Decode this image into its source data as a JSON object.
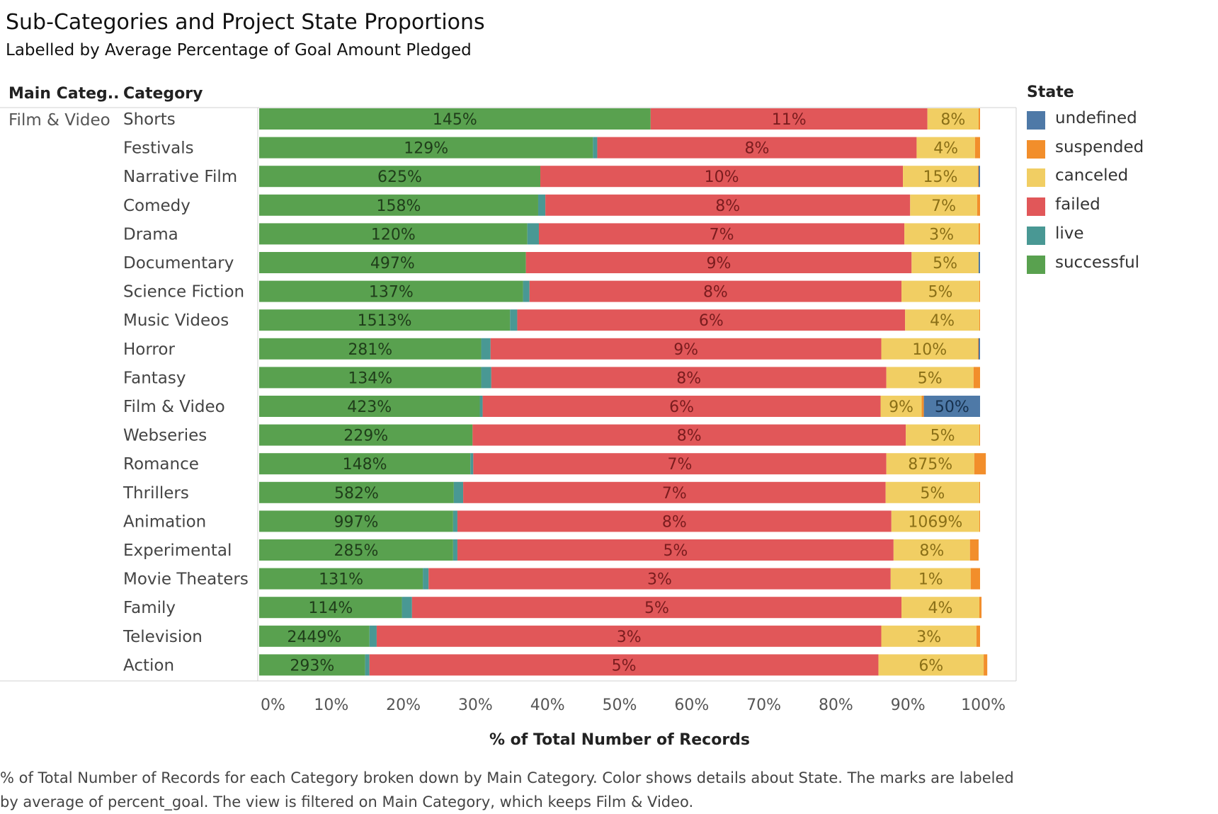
{
  "title": "Sub-Categories and Project State Proportions",
  "subtitle": "Labelled by Average Percentage of Goal Amount Pledged",
  "headers": {
    "main_category": "Main Categ..",
    "category": "Category"
  },
  "main_category_value": "Film & Video",
  "legend": {
    "title": "State",
    "items": [
      {
        "label": "undefined",
        "color": "#4e79a7"
      },
      {
        "label": "suspended",
        "color": "#f28e2b"
      },
      {
        "label": "canceled",
        "color": "#f1ce63"
      },
      {
        "label": "failed",
        "color": "#e15759"
      },
      {
        "label": "live",
        "color": "#499894"
      },
      {
        "label": "successful",
        "color": "#59a14f"
      }
    ]
  },
  "caption": "% of Total Number of Records for each Category broken down by Main Category.  Color shows details about State.  The marks are labeled by average of percent_goal. The view is filtered on Main Category, which keeps Film & Video.",
  "chart_data": {
    "type": "bar",
    "orientation": "horizontal",
    "stacked": true,
    "xlabel": "% of Total Number of Records",
    "xlim": [
      0,
      100
    ],
    "x_ticks": [
      "0%",
      "10%",
      "20%",
      "30%",
      "40%",
      "50%",
      "60%",
      "70%",
      "80%",
      "90%",
      "100%"
    ],
    "categories": [
      "Shorts",
      "Festivals",
      "Narrative Film",
      "Comedy",
      "Drama",
      "Documentary",
      "Science Fiction",
      "Music Videos",
      "Horror",
      "Fantasy",
      "Film & Video",
      "Webseries",
      "Romance",
      "Thrillers",
      "Animation",
      "Experimental",
      "Movie Theaters",
      "Family",
      "Television",
      "Action"
    ],
    "series": [
      {
        "name": "successful",
        "color": "#59a14f",
        "values": [
          54.3,
          46.3,
          39.0,
          38.7,
          37.2,
          37.0,
          36.6,
          34.8,
          30.8,
          30.8,
          30.6,
          29.6,
          29.3,
          27.0,
          26.9,
          26.9,
          22.7,
          19.8,
          15.3,
          14.7
        ],
        "labels": [
          "145%",
          "129%",
          "625%",
          "158%",
          "120%",
          "497%",
          "137%",
          "1513%",
          "281%",
          "134%",
          "423%",
          "229%",
          "148%",
          "582%",
          "997%",
          "285%",
          "131%",
          "114%",
          "2449%",
          "293%"
        ]
      },
      {
        "name": "live",
        "color": "#499894",
        "values": [
          0.0,
          0.6,
          0.0,
          1.0,
          1.6,
          0.0,
          0.9,
          1.0,
          1.3,
          1.4,
          0.4,
          0.0,
          0.4,
          1.3,
          0.6,
          0.6,
          0.8,
          1.4,
          1.0,
          0.6
        ],
        "labels": [
          "",
          "",
          "",
          "",
          "",
          "",
          "",
          "",
          "",
          "",
          "",
          "",
          "",
          "",
          "",
          "",
          "",
          "",
          "",
          ""
        ]
      },
      {
        "name": "failed",
        "color": "#e15759",
        "values": [
          38.4,
          44.3,
          50.3,
          50.6,
          50.7,
          53.5,
          51.6,
          53.8,
          54.2,
          54.8,
          55.2,
          60.1,
          57.3,
          58.6,
          60.2,
          60.5,
          64.1,
          67.9,
          70.0,
          70.6
        ],
        "labels": [
          "11%",
          "8%",
          "10%",
          "8%",
          "7%",
          "9%",
          "8%",
          "6%",
          "9%",
          "8%",
          "6%",
          "8%",
          "7%",
          "7%",
          "8%",
          "5%",
          "3%",
          "5%",
          "3%",
          "5%"
        ]
      },
      {
        "name": "canceled",
        "color": "#f1ce63",
        "values": [
          7.1,
          8.1,
          10.4,
          9.3,
          10.3,
          9.3,
          10.8,
          10.3,
          13.4,
          12.1,
          5.7,
          10.2,
          12.2,
          13.0,
          12.2,
          10.6,
          11.1,
          10.8,
          13.2,
          14.6
        ],
        "labels": [
          "8%",
          "4%",
          "15%",
          "7%",
          "3%",
          "5%",
          "5%",
          "4%",
          "10%",
          "5%",
          "9%",
          "5%",
          "875%",
          "5%",
          "1069%",
          "8%",
          "1%",
          "4%",
          "3%",
          "6%"
        ]
      },
      {
        "name": "suspended",
        "color": "#f28e2b",
        "values": [
          0.2,
          0.7,
          0.1,
          0.4,
          0.2,
          0.0,
          0.1,
          0.1,
          0.1,
          0.9,
          0.3,
          0.1,
          1.6,
          0.1,
          0.1,
          1.2,
          1.3,
          0.3,
          0.5,
          0.5
        ],
        "labels": [
          "",
          "",
          "",
          "",
          "",
          "",
          "",
          "",
          "",
          "",
          "",
          "",
          "",
          "",
          "",
          "",
          "",
          "",
          "",
          ""
        ]
      },
      {
        "name": "undefined",
        "color": "#4e79a7",
        "values": [
          0.0,
          0.0,
          0.2,
          0.0,
          0.0,
          0.2,
          0.0,
          0.0,
          0.2,
          0.0,
          7.8,
          0.0,
          0.0,
          0.0,
          0.0,
          0.0,
          0.0,
          0.0,
          0.0,
          0.0
        ],
        "labels": [
          "",
          "",
          "",
          "",
          "",
          "",
          "",
          "",
          "",
          "",
          "50%",
          "",
          "",
          "",
          "",
          "",
          "",
          "",
          "",
          ""
        ]
      }
    ],
    "grid": false,
    "legend_position": "right"
  }
}
